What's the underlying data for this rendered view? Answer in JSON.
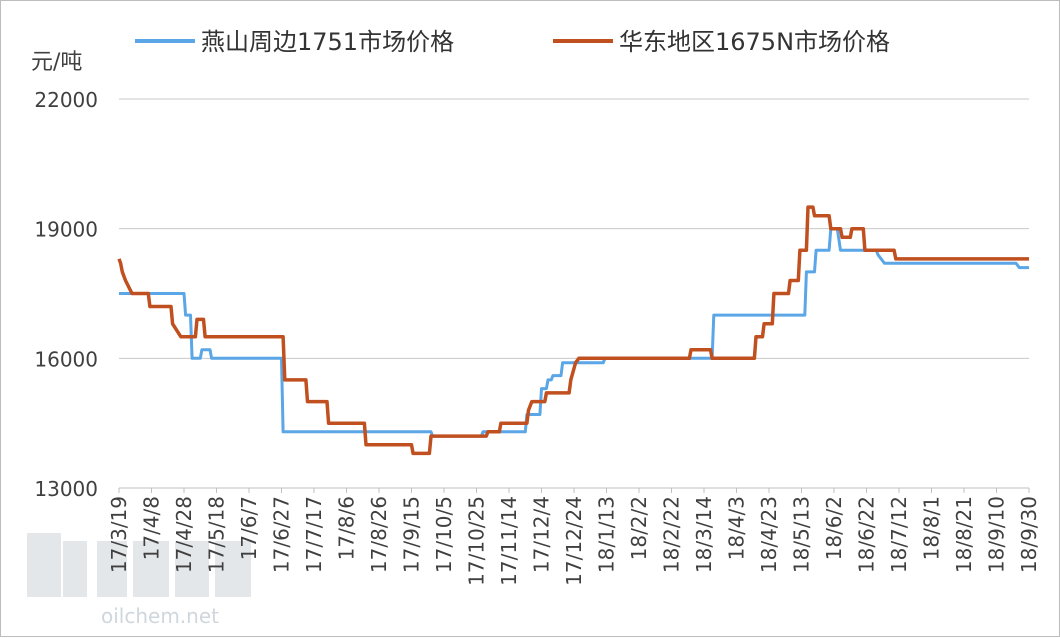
{
  "chart_data": {
    "type": "line",
    "ylabel": "元/吨",
    "ylim": [
      13000,
      22000
    ],
    "yticks": [
      13000,
      16000,
      19000,
      22000
    ],
    "grid": true,
    "legend_position": "top",
    "xlim": [
      "2017-03-19",
      "2018-09-30"
    ],
    "categories": [
      "17/3/19",
      "17/4/8",
      "17/4/28",
      "17/5/18",
      "17/6/7",
      "17/6/27",
      "17/7/17",
      "17/8/6",
      "17/8/26",
      "17/9/15",
      "17/10/5",
      "17/10/25",
      "17/11/14",
      "17/12/4",
      "17/12/24",
      "18/1/13",
      "18/2/2",
      "18/2/22",
      "18/3/14",
      "18/4/3",
      "18/4/23",
      "18/5/13",
      "18/6/2",
      "18/6/22",
      "18/7/12",
      "18/8/1",
      "18/8/21",
      "18/9/10",
      "18/9/30"
    ],
    "series": [
      {
        "name": "燕山周边1751市场价格",
        "color": "#5aa6e6",
        "points": [
          [
            "2017-03-19",
            17500
          ],
          [
            "2017-04-28",
            17500
          ],
          [
            "2017-04-29",
            17000
          ],
          [
            "2017-05-02",
            17000
          ],
          [
            "2017-05-03",
            16000
          ],
          [
            "2017-05-08",
            16000
          ],
          [
            "2017-05-09",
            16200
          ],
          [
            "2017-05-14",
            16200
          ],
          [
            "2017-05-15",
            16000
          ],
          [
            "2017-06-27",
            16000
          ],
          [
            "2017-06-28",
            14300
          ],
          [
            "2017-09-27",
            14300
          ],
          [
            "2017-09-28",
            14200
          ],
          [
            "2017-10-28",
            14200
          ],
          [
            "2017-10-29",
            14300
          ],
          [
            "2017-11-24",
            14300
          ],
          [
            "2017-11-25",
            14700
          ],
          [
            "2017-12-03",
            14700
          ],
          [
            "2017-12-04",
            15300
          ],
          [
            "2017-12-07",
            15300
          ],
          [
            "2017-12-08",
            15500
          ],
          [
            "2017-12-10",
            15500
          ],
          [
            "2017-12-11",
            15600
          ],
          [
            "2017-12-16",
            15600
          ],
          [
            "2017-12-17",
            15900
          ],
          [
            "2018-01-11",
            15900
          ],
          [
            "2018-01-12",
            16000
          ],
          [
            "2018-03-19",
            16000
          ],
          [
            "2018-03-20",
            17000
          ],
          [
            "2018-05-15",
            17000
          ],
          [
            "2018-05-16",
            18000
          ],
          [
            "2018-05-21",
            18000
          ],
          [
            "2018-05-22",
            18500
          ],
          [
            "2018-05-30",
            18500
          ],
          [
            "2018-05-31",
            19000
          ],
          [
            "2018-06-04",
            19000
          ],
          [
            "2018-06-06",
            18500
          ],
          [
            "2018-06-28",
            18500
          ],
          [
            "2018-06-29",
            18400
          ],
          [
            "2018-07-01",
            18300
          ],
          [
            "2018-07-03",
            18200
          ],
          [
            "2018-09-22",
            18200
          ],
          [
            "2018-09-24",
            18100
          ],
          [
            "2018-09-30",
            18100
          ]
        ]
      },
      {
        "name": "华东地区1675N市场价格",
        "color": "#c0501f",
        "points": [
          [
            "2017-03-19",
            18300
          ],
          [
            "2017-03-20",
            18200
          ],
          [
            "2017-03-21",
            18000
          ],
          [
            "2017-03-23",
            17800
          ],
          [
            "2017-03-27",
            17500
          ],
          [
            "2017-04-06",
            17500
          ],
          [
            "2017-04-07",
            17200
          ],
          [
            "2017-04-20",
            17200
          ],
          [
            "2017-04-21",
            16800
          ],
          [
            "2017-04-26",
            16500
          ],
          [
            "2017-05-05",
            16500
          ],
          [
            "2017-05-06",
            16900
          ],
          [
            "2017-05-10",
            16900
          ],
          [
            "2017-05-11",
            16500
          ],
          [
            "2017-06-28",
            16500
          ],
          [
            "2017-06-29",
            15500
          ],
          [
            "2017-07-12",
            15500
          ],
          [
            "2017-07-13",
            15000
          ],
          [
            "2017-07-25",
            15000
          ],
          [
            "2017-07-26",
            14500
          ],
          [
            "2017-08-17",
            14500
          ],
          [
            "2017-08-18",
            14000
          ],
          [
            "2017-09-15",
            14000
          ],
          [
            "2017-09-16",
            13800
          ],
          [
            "2017-09-26",
            13800
          ],
          [
            "2017-09-27",
            14200
          ],
          [
            "2017-10-31",
            14200
          ],
          [
            "2017-11-01",
            14300
          ],
          [
            "2017-11-08",
            14300
          ],
          [
            "2017-11-09",
            14500
          ],
          [
            "2017-11-25",
            14500
          ],
          [
            "2017-11-26",
            14800
          ],
          [
            "2017-11-28",
            15000
          ],
          [
            "2017-12-06",
            15000
          ],
          [
            "2017-12-07",
            15200
          ],
          [
            "2017-12-21",
            15200
          ],
          [
            "2017-12-22",
            15500
          ],
          [
            "2017-12-25",
            15900
          ],
          [
            "2017-12-27",
            16000
          ],
          [
            "2018-03-05",
            16000
          ],
          [
            "2018-03-06",
            16200
          ],
          [
            "2018-03-18",
            16200
          ],
          [
            "2018-03-19",
            16000
          ],
          [
            "2018-04-14",
            16000
          ],
          [
            "2018-04-15",
            16500
          ],
          [
            "2018-04-19",
            16500
          ],
          [
            "2018-04-20",
            16800
          ],
          [
            "2018-04-25",
            16800
          ],
          [
            "2018-04-26",
            17500
          ],
          [
            "2018-05-05",
            17500
          ],
          [
            "2018-05-06",
            17800
          ],
          [
            "2018-05-11",
            17800
          ],
          [
            "2018-05-12",
            18500
          ],
          [
            "2018-05-16",
            18500
          ],
          [
            "2018-05-17",
            19500
          ],
          [
            "2018-05-20",
            19500
          ],
          [
            "2018-05-21",
            19300
          ],
          [
            "2018-05-30",
            19300
          ],
          [
            "2018-05-31",
            19000
          ],
          [
            "2018-06-06",
            19000
          ],
          [
            "2018-06-07",
            18800
          ],
          [
            "2018-06-12",
            18800
          ],
          [
            "2018-06-13",
            19000
          ],
          [
            "2018-06-20",
            19000
          ],
          [
            "2018-06-21",
            18500
          ],
          [
            "2018-07-09",
            18500
          ],
          [
            "2018-07-10",
            18300
          ],
          [
            "2018-09-30",
            18300
          ]
        ]
      }
    ]
  },
  "watermark": {
    "text": "oilchem.net"
  }
}
